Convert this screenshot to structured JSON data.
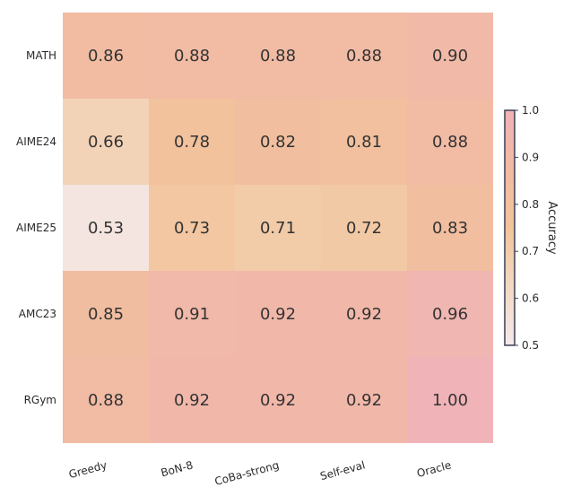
{
  "chart_data": {
    "type": "heatmap",
    "rows": [
      "MATH",
      "AIME24",
      "AIME25",
      "AMC23",
      "RGym"
    ],
    "columns": [
      "Greedy",
      "BoN-8",
      "CoBa-strong",
      "Self-eval",
      "Oracle"
    ],
    "values": [
      [
        0.86,
        0.88,
        0.88,
        0.88,
        0.9
      ],
      [
        0.66,
        0.78,
        0.82,
        0.81,
        0.88
      ],
      [
        0.53,
        0.73,
        0.71,
        0.72,
        0.83
      ],
      [
        0.85,
        0.91,
        0.92,
        0.92,
        0.96
      ],
      [
        0.88,
        0.92,
        0.92,
        0.92,
        1.0
      ]
    ],
    "value_labels": [
      [
        "0.86",
        "0.88",
        "0.88",
        "0.88",
        "0.90"
      ],
      [
        "0.66",
        "0.78",
        "0.82",
        "0.81",
        "0.88"
      ],
      [
        "0.53",
        "0.73",
        "0.71",
        "0.72",
        "0.83"
      ],
      [
        "0.85",
        "0.91",
        "0.92",
        "0.92",
        "0.96"
      ],
      [
        "0.88",
        "0.92",
        "0.92",
        "0.92",
        "1.00"
      ]
    ],
    "colorbar": {
      "label": "Accuracy",
      "range": [
        0.5,
        1.0
      ],
      "ticks": [
        "0.5",
        "0.6",
        "0.7",
        "0.8",
        "0.9",
        "1.0"
      ],
      "colors": [
        "#f5e9ea",
        "#f3d9c3",
        "#f2c49b",
        "#f1bba3",
        "#f0b3b7"
      ]
    },
    "title": "",
    "xlabel": "",
    "ylabel": ""
  }
}
